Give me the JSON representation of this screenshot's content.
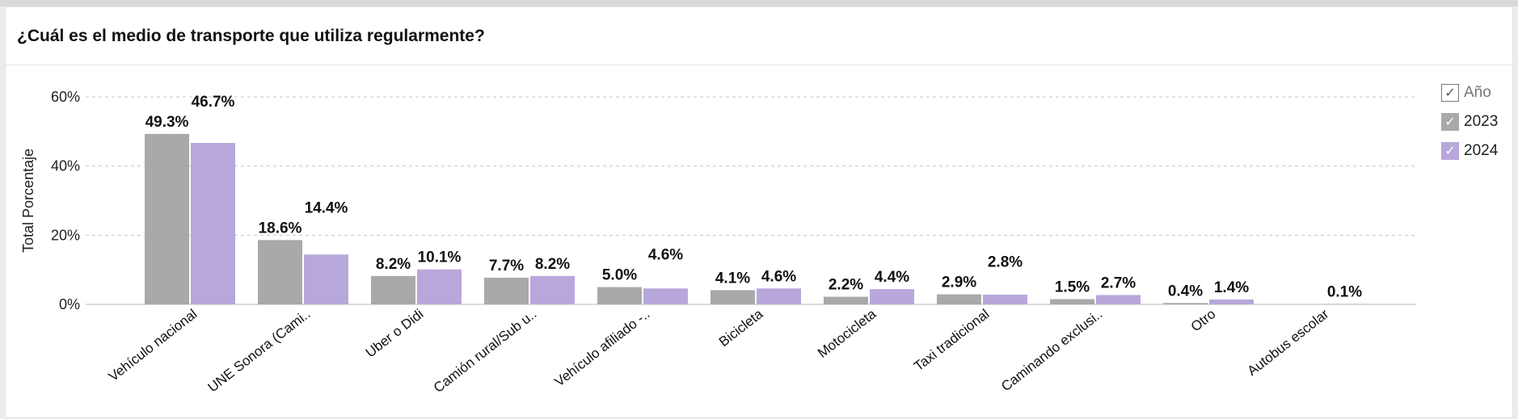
{
  "page": {
    "title": "¿Cuál es el medio de transporte que utiliza regularmente?"
  },
  "legend": {
    "header": "Año",
    "check_glyph": "✓",
    "items": [
      {
        "label": "2023",
        "color": "#a9a9a9"
      },
      {
        "label": "2024",
        "color": "#b8a7db"
      }
    ]
  },
  "chart_data": {
    "type": "bar",
    "ylabel": "Total Porcentaje",
    "xlabel": "",
    "ylim": [
      0,
      60
    ],
    "yticks": [
      0,
      20,
      40,
      60
    ],
    "ytick_labels": [
      "0%",
      "20%",
      "40%",
      "60%"
    ],
    "grid": true,
    "legend_position": "top-right",
    "categories": [
      "Vehículo nacional",
      "UNE Sonora (Cami..",
      "Uber o Didi",
      "Camión rural/Sub u..",
      "Vehículo afiliado -..",
      "Bicicleta",
      "Motocicleta",
      "Taxi tradicional",
      "Caminando exclusi..",
      "Otro",
      "Autobus escolar"
    ],
    "series": [
      {
        "name": "2023",
        "color": "#a9a9a9",
        "values": [
          49.3,
          18.6,
          8.2,
          7.7,
          5.0,
          4.1,
          2.2,
          2.9,
          1.5,
          0.4,
          null
        ],
        "labels": [
          "49.3%",
          "18.6%",
          "8.2%",
          "7.7%",
          "5.0%",
          "4.1%",
          "2.2%",
          "2.9%",
          "1.5%",
          "0.4%",
          ""
        ]
      },
      {
        "name": "2024",
        "color": "#b8a7db",
        "values": [
          46.7,
          14.4,
          10.1,
          8.2,
          4.6,
          4.6,
          4.4,
          2.8,
          2.7,
          1.4,
          0.1
        ],
        "labels": [
          "46.7%",
          "14.4%",
          "10.1%",
          "8.2%",
          "4.6%",
          "4.6%",
          "4.4%",
          "2.8%",
          "2.7%",
          "1.4%",
          "0.1%"
        ]
      }
    ]
  }
}
